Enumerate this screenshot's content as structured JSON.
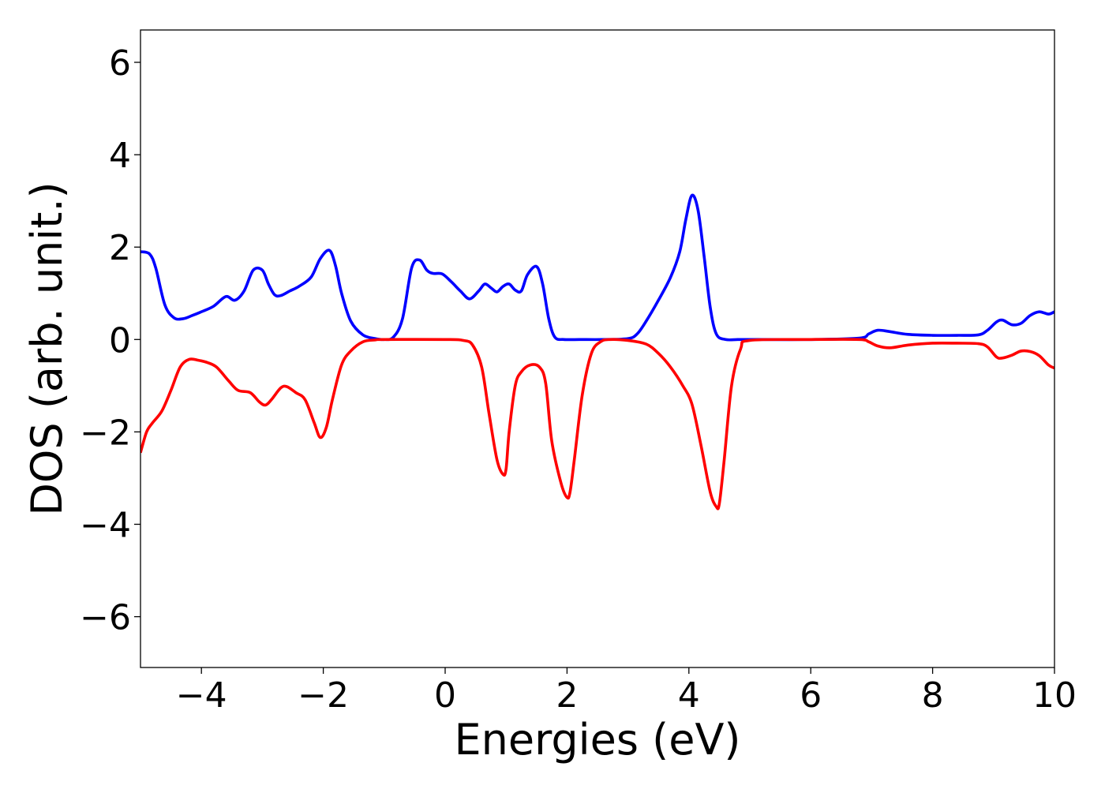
{
  "chart_data": {
    "type": "line",
    "xlabel": "Energies (eV)",
    "ylabel": "DOS (arb. unit.)",
    "xlim": [
      -5,
      10
    ],
    "ylim": [
      -7.1,
      6.7
    ],
    "xticks": [
      -4,
      -2,
      0,
      2,
      4,
      6,
      8,
      10
    ],
    "yticks": [
      -6,
      -4,
      -2,
      0,
      2,
      4,
      6
    ],
    "xtick_labels": [
      "−4",
      "−2",
      "0",
      "2",
      "4",
      "6",
      "8",
      "10"
    ],
    "ytick_labels": [
      "−6",
      "−4",
      "−2",
      "0",
      "2",
      "4",
      "6"
    ],
    "grid": false,
    "legend": "none",
    "series": [
      {
        "color": "#0000ff",
        "x": [
          -5.0,
          -4.85,
          -4.75,
          -4.6,
          -4.45,
          -4.3,
          -4.15,
          -4.0,
          -3.8,
          -3.6,
          -3.45,
          -3.3,
          -3.15,
          -3.0,
          -2.9,
          -2.8,
          -2.7,
          -2.55,
          -2.4,
          -2.2,
          -2.05,
          -1.9,
          -1.8,
          -1.7,
          -1.55,
          -1.35,
          -1.15,
          -1.0,
          -0.85,
          -0.7,
          -0.55,
          -0.42,
          -0.3,
          -0.2,
          -0.05,
          0.1,
          0.25,
          0.4,
          0.55,
          0.65,
          0.75,
          0.85,
          0.95,
          1.05,
          1.15,
          1.25,
          1.35,
          1.5,
          1.6,
          1.7,
          1.8,
          1.95,
          2.2,
          2.6,
          3.0,
          3.15,
          3.3,
          3.5,
          3.7,
          3.85,
          3.95,
          4.05,
          4.15,
          4.25,
          4.35,
          4.45,
          4.6,
          4.8,
          5.0,
          6.0,
          6.8,
          6.95,
          7.1,
          7.3,
          7.6,
          8.0,
          8.4,
          8.75,
          8.9,
          9.05,
          9.15,
          9.3,
          9.45,
          9.6,
          9.75,
          9.9,
          10.0
        ],
        "y": [
          1.9,
          1.85,
          1.55,
          0.75,
          0.47,
          0.45,
          0.52,
          0.6,
          0.72,
          0.93,
          0.85,
          1.05,
          1.5,
          1.5,
          1.2,
          0.97,
          0.95,
          1.05,
          1.15,
          1.35,
          1.75,
          1.93,
          1.6,
          1.0,
          0.4,
          0.1,
          0.02,
          0.0,
          0.05,
          0.45,
          1.55,
          1.72,
          1.5,
          1.43,
          1.42,
          1.25,
          1.05,
          0.88,
          1.05,
          1.2,
          1.12,
          1.03,
          1.15,
          1.2,
          1.07,
          1.05,
          1.4,
          1.58,
          1.2,
          0.45,
          0.05,
          0.0,
          0.0,
          0.0,
          0.02,
          0.12,
          0.4,
          0.85,
          1.35,
          1.9,
          2.6,
          3.12,
          2.8,
          1.8,
          0.7,
          0.12,
          0.0,
          0.0,
          0.0,
          0.0,
          0.03,
          0.12,
          0.2,
          0.17,
          0.11,
          0.09,
          0.09,
          0.1,
          0.2,
          0.38,
          0.42,
          0.32,
          0.35,
          0.52,
          0.6,
          0.55,
          0.6
        ]
      },
      {
        "color": "#ff0000",
        "x": [
          -5.0,
          -4.9,
          -4.8,
          -4.65,
          -4.5,
          -4.35,
          -4.2,
          -4.05,
          -3.9,
          -3.75,
          -3.55,
          -3.4,
          -3.2,
          -3.05,
          -2.95,
          -2.85,
          -2.7,
          -2.6,
          -2.45,
          -2.3,
          -2.15,
          -2.05,
          -1.95,
          -1.85,
          -1.7,
          -1.55,
          -1.35,
          -1.15,
          -1.0,
          0.0,
          0.3,
          0.45,
          0.6,
          0.72,
          0.85,
          0.95,
          1.0,
          1.05,
          1.15,
          1.25,
          1.4,
          1.55,
          1.65,
          1.75,
          1.9,
          2.0,
          2.05,
          2.12,
          2.25,
          2.4,
          2.55,
          2.7,
          3.0,
          3.3,
          3.5,
          3.7,
          3.9,
          4.05,
          4.2,
          4.35,
          4.45,
          4.5,
          4.58,
          4.7,
          4.85,
          5.0,
          6.0,
          6.8,
          6.95,
          7.1,
          7.3,
          7.6,
          8.0,
          8.4,
          8.75,
          8.9,
          9.05,
          9.15,
          9.3,
          9.45,
          9.6,
          9.75,
          9.9,
          10.0
        ],
        "y": [
          -2.45,
          -2.0,
          -1.8,
          -1.55,
          -1.1,
          -0.6,
          -0.43,
          -0.45,
          -0.5,
          -0.6,
          -0.9,
          -1.1,
          -1.15,
          -1.35,
          -1.42,
          -1.3,
          -1.05,
          -1.02,
          -1.15,
          -1.3,
          -1.8,
          -2.12,
          -1.9,
          -1.3,
          -0.55,
          -0.25,
          -0.05,
          -0.01,
          0.0,
          0.0,
          -0.02,
          -0.12,
          -0.6,
          -1.6,
          -2.6,
          -2.92,
          -2.8,
          -2.0,
          -1.0,
          -0.7,
          -0.55,
          -0.6,
          -0.95,
          -2.2,
          -3.1,
          -3.42,
          -3.3,
          -2.6,
          -1.2,
          -0.3,
          -0.05,
          0.0,
          -0.02,
          -0.1,
          -0.3,
          -0.6,
          -1.0,
          -1.4,
          -2.3,
          -3.3,
          -3.62,
          -3.55,
          -2.6,
          -1.0,
          -0.2,
          -0.02,
          0.0,
          0.0,
          -0.05,
          -0.14,
          -0.18,
          -0.12,
          -0.08,
          -0.08,
          -0.09,
          -0.16,
          -0.38,
          -0.4,
          -0.34,
          -0.25,
          -0.26,
          -0.35,
          -0.55,
          -0.62
        ]
      }
    ]
  }
}
